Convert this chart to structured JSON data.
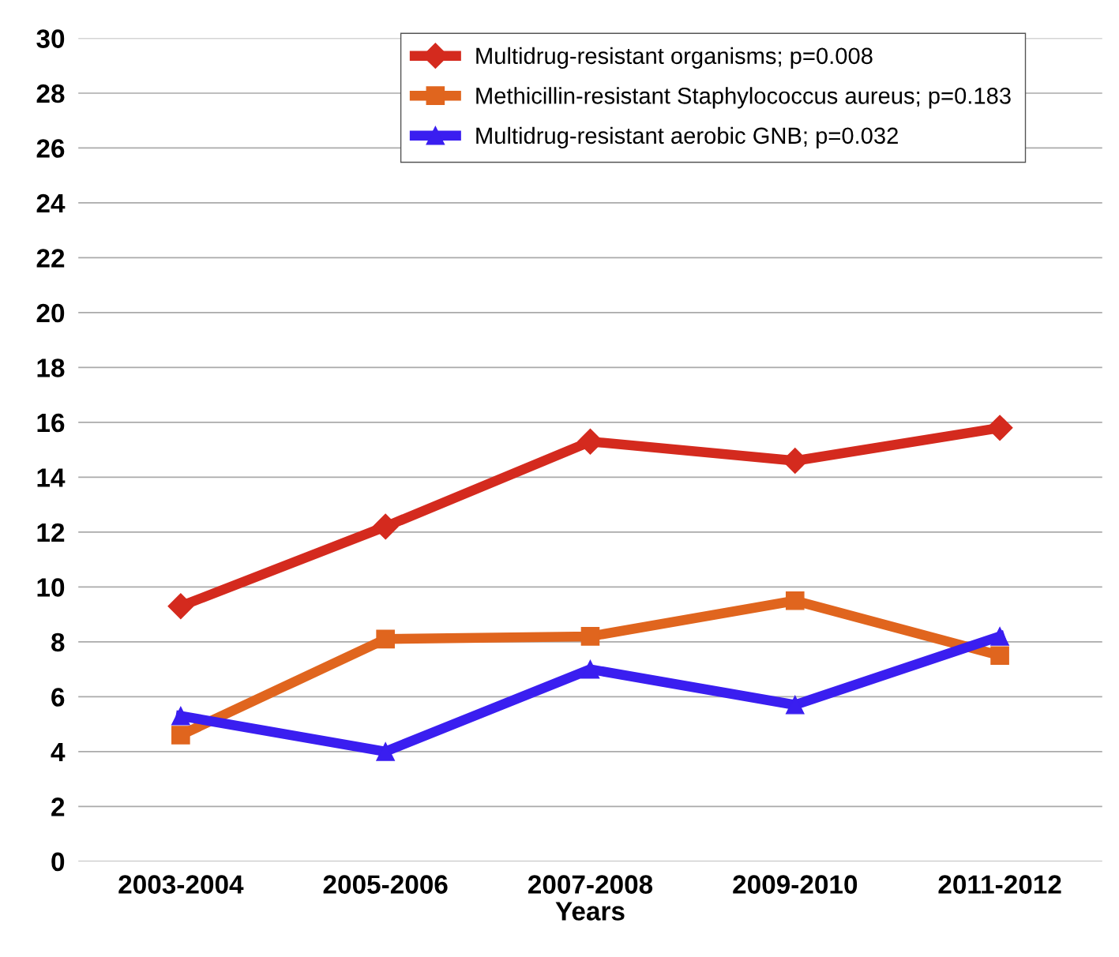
{
  "chart_data": {
    "type": "line",
    "xlabel": "Years",
    "categories": [
      "2003-2004",
      "2005-2006",
      "2007-2008",
      "2009-2010",
      "2011-2012"
    ],
    "series": [
      {
        "name": "Multidrug-resistant organisms; p=0.008",
        "color": "#d42a1e",
        "marker": "diamond",
        "values": [
          9.3,
          12.2,
          15.3,
          14.6,
          15.8
        ]
      },
      {
        "name": "Methicillin-resistant Staphylococcus aureus; p=0.183",
        "color": "#e0651e",
        "marker": "square",
        "values": [
          4.6,
          8.1,
          8.2,
          9.5,
          7.5
        ]
      },
      {
        "name": "Multidrug-resistant aerobic GNB; p=0.032",
        "color": "#3a1ef0",
        "marker": "triangle",
        "values": [
          5.3,
          4.0,
          7.0,
          5.7,
          8.2
        ]
      }
    ],
    "ylim": [
      0,
      30
    ],
    "yticks": [
      0,
      2,
      4,
      6,
      8,
      10,
      12,
      14,
      16,
      18,
      20,
      22,
      24,
      26,
      28,
      30
    ],
    "grid": "y",
    "legend": "top",
    "line_style": "solid"
  }
}
